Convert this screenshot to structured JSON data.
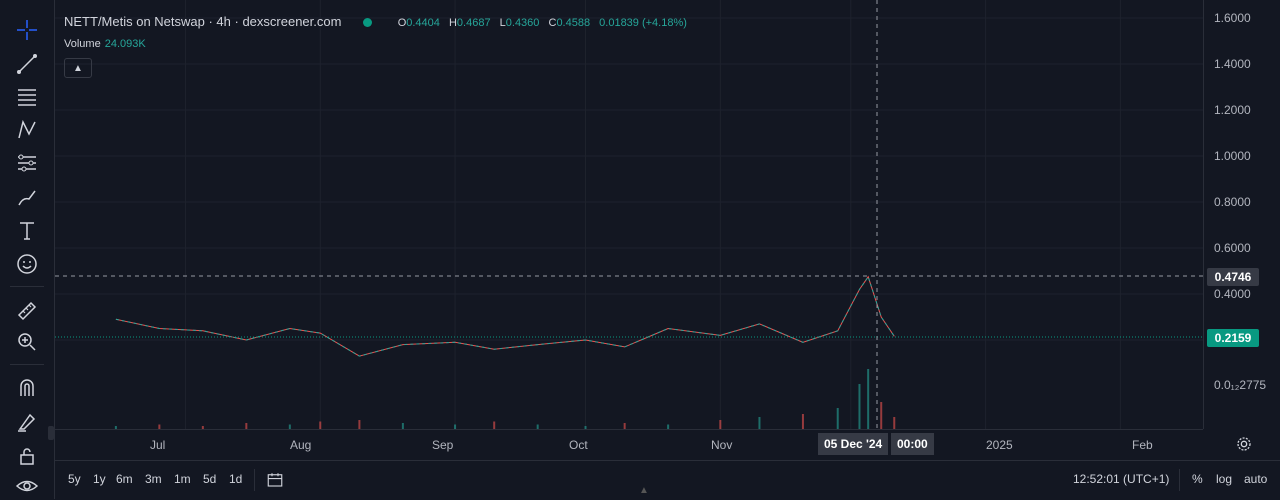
{
  "legend": {
    "title": "NETT/Metis on Netswap · 4h · dexscreener.com",
    "o_key": "O",
    "o_val": "0.4404",
    "h_key": "H",
    "h_val": "0.4687",
    "l_key": "L",
    "l_val": "0.4360",
    "c_key": "C",
    "c_val": "0.4588",
    "change": "0.01839 (+4.18%)"
  },
  "volume": {
    "label": "Volume",
    "value": "24.093K"
  },
  "price_axis": {
    "labels": [
      "1.6000",
      "1.4000",
      "1.2000",
      "1.0000",
      "0.8000",
      "0.6000",
      "0.4000",
      "0.0₁₂2775"
    ],
    "crosshair_price": "0.4746",
    "last_price": "0.2159"
  },
  "time_axis": {
    "labels": [
      "Jul",
      "Aug",
      "Sep",
      "Oct",
      "Nov",
      "2025",
      "Feb"
    ],
    "crosshair_date": "05 Dec '24",
    "crosshair_time": "00:00"
  },
  "ranges": [
    "5y",
    "1y",
    "6m",
    "3m",
    "1m",
    "5d",
    "1d"
  ],
  "status": {
    "clock": "12:52:01 (UTC+1)",
    "percent": "%",
    "log": "log",
    "auto": "auto"
  },
  "colors": {
    "up": "#26a69a",
    "down": "#ef5350",
    "background": "#131722",
    "last_price": "#089981"
  },
  "chart_data": {
    "type": "line",
    "series": [
      {
        "x": [
          "2024-06-15",
          "2024-06-25",
          "2024-07-05",
          "2024-07-15",
          "2024-07-25",
          "2024-08-01",
          "2024-08-10",
          "2024-08-20",
          "2024-09-01",
          "2024-09-10",
          "2024-09-20",
          "2024-10-01",
          "2024-10-10",
          "2024-10-20",
          "2024-11-01",
          "2024-11-10",
          "2024-11-20",
          "2024-11-28",
          "2024-12-03",
          "2024-12-05",
          "2024-12-08",
          "2024-12-11"
        ],
        "values": [
          0.29,
          0.25,
          0.24,
          0.2,
          0.25,
          0.23,
          0.13,
          0.18,
          0.19,
          0.16,
          0.18,
          0.2,
          0.17,
          0.25,
          0.22,
          0.27,
          0.19,
          0.24,
          0.42,
          0.4746,
          0.3,
          0.2159
        ]
      }
    ],
    "volume": [
      2,
      3,
      2,
      4,
      3,
      5,
      6,
      4,
      3,
      5,
      3,
      2,
      4,
      3,
      6,
      8,
      10,
      14,
      30,
      40,
      18,
      8
    ],
    "ylim": [
      0,
      1.6
    ]
  }
}
